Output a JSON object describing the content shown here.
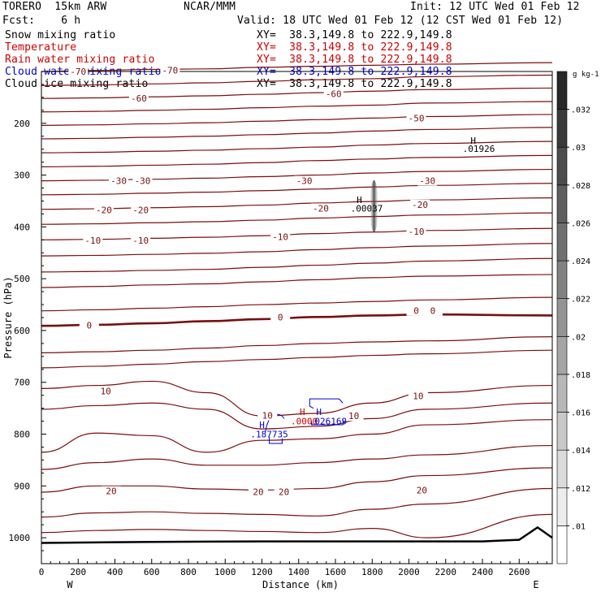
{
  "header": {
    "model": "TORERO  15km ARW",
    "source": "NCAR/MMM",
    "init": "Init: 12 UTC Wed 01 Feb 12",
    "fcst": "Fcst:    6 h",
    "valid": "Valid: 18 UTC Wed 01 Feb 12 (12 CST Wed 01 Feb 12)"
  },
  "fields": [
    {
      "name": "Snow mixing ratio",
      "xy": "XY=  38.3,149.8 to 222.9,149.8",
      "color": "#000000"
    },
    {
      "name": "Temperature",
      "xy": "XY=  38.3,149.8 to 222.9,149.8",
      "color": "#cc0000"
    },
    {
      "name": "Rain water mixing ratio",
      "xy": "XY=  38.3,149.8 to 222.9,149.8",
      "color": "#cc0000"
    },
    {
      "name": "Cloud water mixing ratio",
      "xy": "XY=  38.3,149.8 to 222.9,149.8",
      "color": "#0000cc"
    },
    {
      "name": "Cloud ice mixing ratio",
      "xy": "XY=  38.3,149.8 to 222.9,149.8",
      "color": "#000000"
    }
  ],
  "colors": {
    "contour": "#7a0e0e",
    "rain": "#cc0000",
    "cloudwater": "#0000cc",
    "axis": "#000000"
  },
  "chart_data": {
    "type": "cross-section-contour",
    "xlabel": "Distance (km)",
    "ylabel": "Pressure (hPa)",
    "xlim": [
      0,
      2780
    ],
    "ylim": [
      1050,
      100
    ],
    "x_ticks": [
      0,
      200,
      400,
      600,
      800,
      1000,
      1200,
      1400,
      1600,
      1800,
      2000,
      2200,
      2400,
      2600
    ],
    "y_ticks": [
      200,
      300,
      400,
      500,
      600,
      700,
      800,
      900,
      1000
    ],
    "x_end_labels": {
      "left": "W",
      "right": "E"
    },
    "temperature_levels": [
      {
        "t": -70,
        "p": [
          100,
          98,
          96,
          95,
          92,
          90,
          88,
          86,
          83
        ]
      },
      {
        "t": -65,
        "p": [
          127,
          126,
          124,
          122,
          119,
          116,
          114,
          110,
          107
        ]
      },
      {
        "t": -60,
        "p": [
          152,
          151,
          149,
          147,
          144,
          141,
          138,
          135,
          132
        ]
      },
      {
        "t": -55,
        "p": [
          178,
          177,
          175,
          173,
          170,
          167,
          165,
          161,
          158
        ]
      },
      {
        "t": -50,
        "p": [
          204,
          203,
          201,
          199,
          196,
          193,
          190,
          187,
          183
        ]
      },
      {
        "t": -45,
        "p": [
          230,
          229,
          227,
          225,
          222,
          219,
          215,
          212,
          208
        ]
      },
      {
        "t": -40,
        "p": [
          257,
          256,
          254,
          252,
          249,
          246,
          242,
          239,
          235
        ]
      },
      {
        "t": -35,
        "p": [
          284,
          283,
          281,
          279,
          276,
          272,
          269,
          266,
          262
        ]
      },
      {
        "t": -30,
        "p": [
          311,
          310,
          308,
          306,
          303,
          300,
          296,
          293,
          289
        ]
      },
      {
        "t": -25,
        "p": [
          338,
          337,
          335,
          333,
          330,
          327,
          323,
          320,
          316
        ]
      },
      {
        "t": -20,
        "p": [
          366,
          365,
          363,
          361,
          358,
          354,
          351,
          348,
          344
        ]
      },
      {
        "t": -15,
        "p": [
          395,
          394,
          392,
          390,
          387,
          383,
          380,
          377,
          373
        ]
      },
      {
        "t": -10,
        "p": [
          425,
          424,
          422,
          420,
          417,
          413,
          410,
          407,
          403
        ]
      },
      {
        "t": -5,
        "p": [
          456,
          455,
          453,
          451,
          448,
          444,
          440,
          437,
          432
        ]
      },
      {
        "t": -5,
        "p": [
          487,
          486,
          484,
          482,
          478,
          474,
          470,
          466,
          461
        ]
      },
      {
        "t": 0,
        "p": [
          517,
          515,
          512,
          510,
          506,
          502,
          498,
          495,
          492
        ]
      },
      {
        "t": 0,
        "p": [
          562,
          560,
          557,
          554,
          550,
          547,
          544,
          541,
          536
        ]
      },
      {
        "t": 0,
        "p": [
          591,
          589,
          586,
          582,
          578,
          574,
          571,
          569,
          571
        ]
      },
      {
        "t": 5,
        "p": [
          643,
          641,
          638,
          634,
          629,
          625,
          622,
          620,
          612
        ]
      },
      {
        "t": 5,
        "p": [
          672,
          669,
          665,
          660,
          656,
          652,
          648,
          645,
          638
        ]
      },
      {
        "t": 10,
        "p": [
          712,
          706,
          698,
          720,
          765,
          760,
          740,
          720,
          706
        ]
      },
      {
        "t": 10,
        "p": [
          752,
          745,
          740,
          752,
          790,
          785,
          770,
          752,
          740
        ]
      },
      {
        "t": 15,
        "p": [
          835,
          798,
          803,
          835,
          812,
          809,
          800,
          782,
          772
        ]
      },
      {
        "t": 15,
        "p": [
          868,
          855,
          848,
          860,
          860,
          855,
          848,
          840,
          822
        ]
      },
      {
        "t": 20,
        "p": [
          912,
          900,
          900,
          906,
          908,
          905,
          892,
          880,
          865
        ]
      },
      {
        "t": 20,
        "p": [
          960,
          952,
          950,
          953,
          955,
          958,
          945,
          935,
          905
        ]
      },
      {
        "t": 25,
        "p": [
          990,
          986,
          984,
          986,
          988,
          990,
          982,
          1000,
          955
        ]
      }
    ],
    "temperature_x": [
      0,
      300,
      600,
      900,
      1200,
      1500,
      1800,
      2100,
      2780
    ],
    "contour_labels": [
      {
        "text": "-70",
        "x": 200,
        "p": 100
      },
      {
        "text": "-70",
        "x": 700,
        "p": 98
      },
      {
        "text": "-60",
        "x": 530,
        "p": 152
      },
      {
        "text": "-60",
        "x": 1590,
        "p": 143
      },
      {
        "text": "-50",
        "x": 2040,
        "p": 190
      },
      {
        "text": "-30",
        "x": 420,
        "p": 311
      },
      {
        "text": "-30",
        "x": 550,
        "p": 311
      },
      {
        "text": "-30",
        "x": 1430,
        "p": 311
      },
      {
        "text": "-30",
        "x": 2100,
        "p": 311
      },
      {
        "text": "-20",
        "x": 340,
        "p": 367
      },
      {
        "text": "-20",
        "x": 540,
        "p": 367
      },
      {
        "text": "-20",
        "x": 1520,
        "p": 364
      },
      {
        "text": "-20",
        "x": 2060,
        "p": 357
      },
      {
        "text": "-10",
        "x": 280,
        "p": 426
      },
      {
        "text": "-10",
        "x": 540,
        "p": 426
      },
      {
        "text": "-10",
        "x": 1300,
        "p": 419
      },
      {
        "text": "-10",
        "x": 2040,
        "p": 409
      },
      {
        "text": "0",
        "x": 260,
        "p": 590
      },
      {
        "text": "0",
        "x": 1300,
        "p": 574
      },
      {
        "text": "0",
        "x": 2040,
        "p": 562
      },
      {
        "text": "0",
        "x": 2130,
        "p": 562
      },
      {
        "text": "10",
        "x": 350,
        "p": 717
      },
      {
        "text": "10",
        "x": 1230,
        "p": 764
      },
      {
        "text": "10",
        "x": 1700,
        "p": 765
      },
      {
        "text": "10",
        "x": 2050,
        "p": 726
      },
      {
        "text": "20",
        "x": 380,
        "p": 910
      },
      {
        "text": "20",
        "x": 1180,
        "p": 911
      },
      {
        "text": "20",
        "x": 1320,
        "p": 911
      },
      {
        "text": "20",
        "x": 2070,
        "p": 908
      }
    ],
    "annotations": [
      {
        "text": "H",
        "x": 2350,
        "p": 233,
        "field": "snow"
      },
      {
        "text": ".01926",
        "x": 2380,
        "p": 249,
        "field": "snow"
      },
      {
        "text": "H",
        "x": 1730,
        "p": 348,
        "field": "ice"
      },
      {
        "text": ".00037",
        "x": 1770,
        "p": 364,
        "field": "ice"
      },
      {
        "text": "H",
        "x": 1420,
        "p": 757,
        "field": "rain"
      },
      {
        "text": "H",
        "x": 1510,
        "p": 757,
        "field": "cloudwater"
      },
      {
        "text": ".0000",
        "x": 1430,
        "p": 775,
        "field": "rain"
      },
      {
        "text": ".026169",
        "x": 1560,
        "p": 775,
        "field": "cloudwater"
      },
      {
        "text": "H",
        "x": 1200,
        "p": 782,
        "field": "cloudwater"
      },
      {
        "text": ".187735",
        "x": 1240,
        "p": 800,
        "field": "cloudwater"
      }
    ],
    "colorbar": {
      "unit": "g kg-1",
      "levels": [
        ".01",
        ".012",
        ".014",
        ".016",
        ".018",
        ".02",
        ".022",
        ".024",
        ".026",
        ".028",
        ".03",
        ".032"
      ]
    }
  }
}
